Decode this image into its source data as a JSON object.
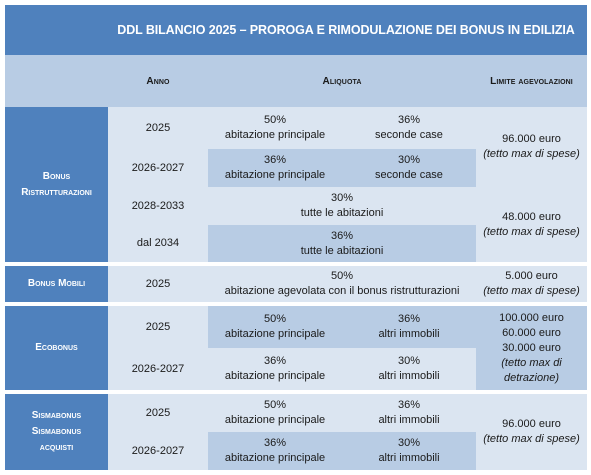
{
  "title": "DDL BILANCIO 2025 – PROROGA E RIMODULAZIONE DEI BONUS IN EDILIZIA",
  "headers": {
    "anno": "Anno",
    "aliquota": "Aliquota",
    "limite": "Limite agevolazioni"
  },
  "bonus_ristrutturazioni": {
    "label_1": "Bonus",
    "label_2": "Ristrutturazioni",
    "rows": [
      {
        "anno": "2025",
        "p1": "50%",
        "d1": "abitazione principale",
        "p2": "36%",
        "d2": "seconde case"
      },
      {
        "anno": "2026-2027",
        "p1": "36%",
        "d1": "abitazione principale",
        "p2": "30%",
        "d2": "seconde case"
      },
      {
        "anno": "2028-2033",
        "p": "30%",
        "d": "tutte le abitazioni"
      },
      {
        "anno": "dal 2034",
        "p": "36%",
        "d": "tutte le abitazioni"
      }
    ],
    "limite_a": {
      "amount": "96.000 euro",
      "note": "(tetto max di spese)"
    },
    "limite_b": {
      "amount": "48.000 euro",
      "note": "(tetto max di spese)"
    }
  },
  "bonus_mobili": {
    "label": "Bonus Mobili",
    "anno": "2025",
    "p": "50%",
    "d": "abitazione agevolata con il bonus ristrutturazioni",
    "limite": {
      "amount": "5.000 euro",
      "note": "(tetto max di spese)"
    }
  },
  "ecobonus": {
    "label": "Ecobonus",
    "rows": [
      {
        "anno": "2025",
        "p1": "50%",
        "d1": "abitazione principale",
        "p2": "36%",
        "d2": "altri immobili"
      },
      {
        "anno": "2026-2027",
        "p1": "36%",
        "d1": "abitazione principale",
        "p2": "30%",
        "d2": "altri immobili"
      }
    ],
    "limite": {
      "line1": "100.000 euro",
      "line2": "60.000 euro",
      "line3": "30.000 euro",
      "note1": "(tetto max di",
      "note2": "detrazione)"
    }
  },
  "sismabonus": {
    "label_1": "Sismabonus",
    "label_2": "Sismabonus",
    "label_3": "acquisti",
    "rows": [
      {
        "anno": "2025",
        "p1": "50%",
        "d1": "abitazione principale",
        "p2": "36%",
        "d2": "altri immobili"
      },
      {
        "anno": "2026-2027",
        "p1": "36%",
        "d1": "abitazione principale",
        "p2": "30%",
        "d2": "altri immobili"
      }
    ],
    "limite": {
      "amount": "96.000 euro",
      "note": "(tetto max di spese)"
    }
  }
}
